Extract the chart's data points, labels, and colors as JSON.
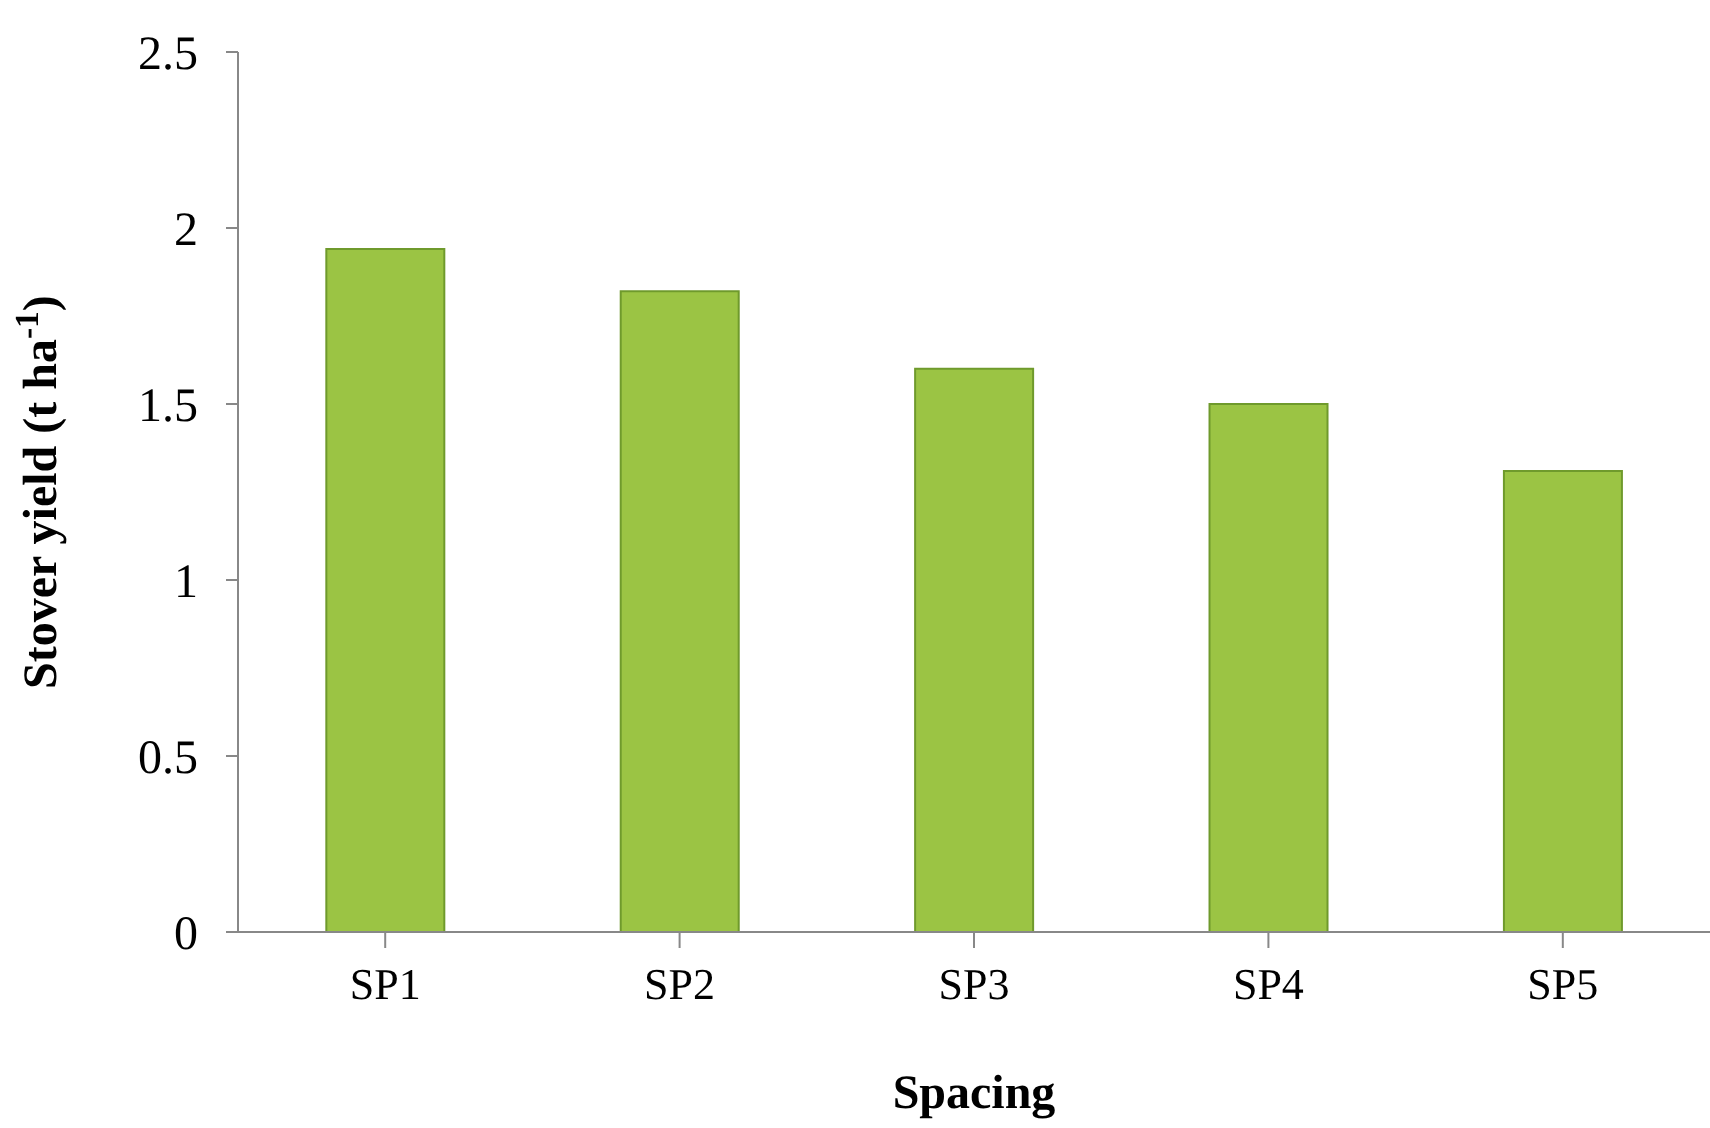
{
  "chart_data": {
    "type": "bar",
    "xlabel": "Spacing",
    "ylabel": "Stover yield (t ha$^{-1}$)",
    "categories": [
      "SP1",
      "SP2",
      "SP3",
      "SP4",
      "SP5"
    ],
    "values": [
      1.94,
      1.82,
      1.6,
      1.5,
      1.31
    ],
    "color": "#9bc444",
    "ylim": [
      0,
      2.5
    ],
    "yticks": [
      0,
      0.5,
      1,
      1.5,
      2,
      2.5
    ],
    "grid": false,
    "legend": false
  }
}
